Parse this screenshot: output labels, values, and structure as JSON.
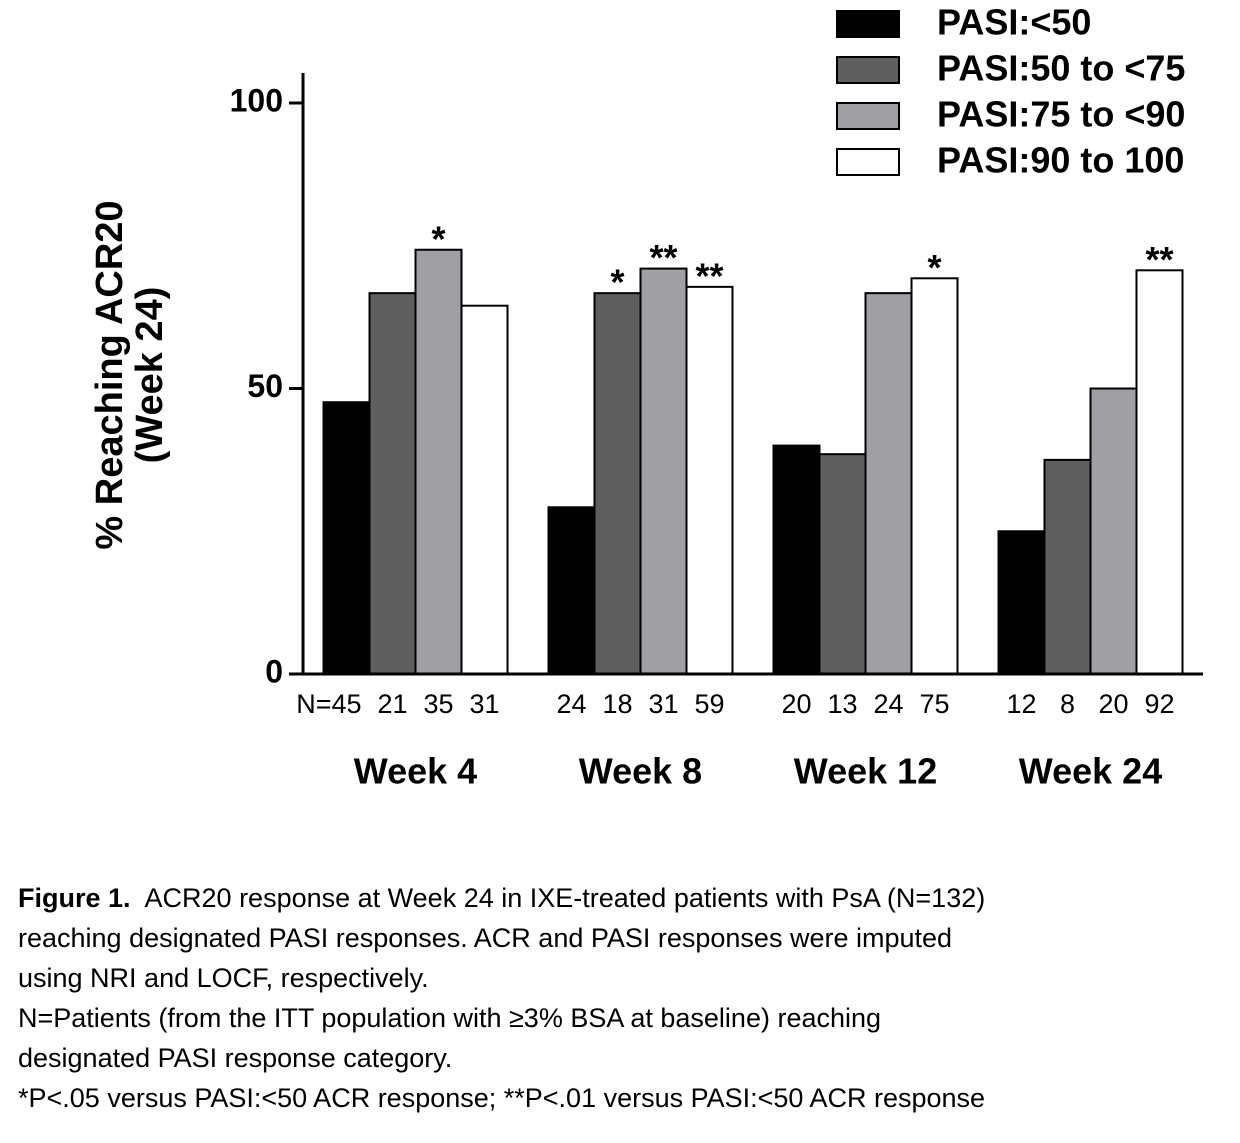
{
  "chart_data": {
    "type": "bar",
    "ylabel": [
      "% Reaching ACR20",
      "(Week 24)"
    ],
    "categories": [
      "Week 4",
      "Week 8",
      "Week 12",
      "Week 24"
    ],
    "series": [
      {
        "name": "PASI:<50",
        "color": "#000000",
        "values": [
          47.6,
          29.2,
          40.0,
          25.0
        ],
        "n": [
          45,
          24,
          20,
          12
        ],
        "significance": [
          null,
          null,
          null,
          null
        ]
      },
      {
        "name": "PASI:50 to <75",
        "color": "#5f5f5f",
        "values": [
          66.7,
          66.7,
          38.5,
          37.5
        ],
        "n": [
          21,
          18,
          13,
          8
        ],
        "significance": [
          null,
          "*",
          null,
          null
        ]
      },
      {
        "name": "PASI:75 to <90",
        "color": "#a0a0a4",
        "values": [
          74.3,
          71.0,
          66.7,
          50.0
        ],
        "n": [
          35,
          31,
          24,
          20
        ],
        "significance": [
          "*",
          "**",
          null,
          null
        ]
      },
      {
        "name": "PASI:90 to 100",
        "color": "#ffffff",
        "values": [
          64.5,
          67.8,
          69.3,
          70.7
        ],
        "n": [
          31,
          59,
          75,
          92
        ],
        "significance": [
          null,
          "**",
          "*",
          "**"
        ]
      }
    ],
    "n_prefix": "N=",
    "ylim": [
      0,
      100
    ],
    "yticks": [
      0,
      50,
      100
    ],
    "legend": "top-right"
  },
  "caption": {
    "bold": "Figure 1.",
    "lines": [
      "ACR20 response at Week 24 in IXE-treated patients with PsA (N=132)",
      "reaching designated PASI responses.  ACR and PASI responses were imputed",
      "using NRI and LOCF, respectively.",
      "N=Patients (from the ITT population with ≥3% BSA at baseline) reaching",
      "designated PASI response category.",
      "*P<.05 versus PASI:<50 ACR response; **P<.01 versus PASI:<50 ACR response"
    ]
  }
}
